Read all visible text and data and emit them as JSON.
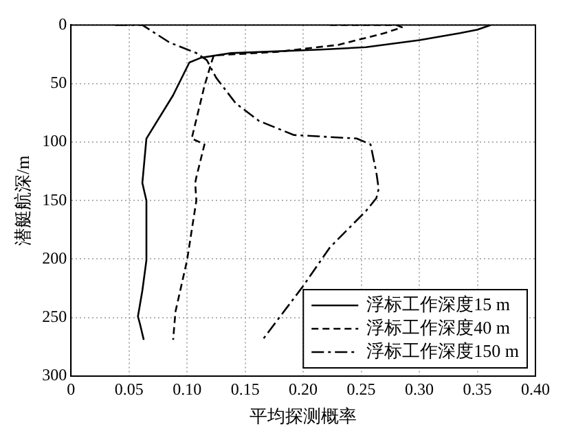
{
  "chart_data": {
    "type": "line",
    "xlabel": "平均探测概率",
    "ylabel": "潜艇航深/m",
    "xlim": [
      0,
      0.4
    ],
    "xticks": [
      0,
      0.05,
      {
        "value": 0.1,
        "label": "0.10"
      },
      0.15,
      {
        "value": 0.2,
        "label": "0.20"
      },
      0.25,
      {
        "value": 0.3,
        "label": "0.30"
      },
      0.35,
      {
        "value": 0.4,
        "label": "0.40"
      }
    ],
    "ylim": [
      300,
      0
    ],
    "yticks": [
      0,
      50,
      100,
      150,
      200,
      250,
      300
    ],
    "grid": true,
    "legend": "bottom right",
    "marker": "none",
    "series": [
      {
        "name": "浮标工作深度15 m",
        "color": "#000000",
        "line_style": "solid",
        "x": [
          0.3615,
          0.35,
          0.335,
          0.3,
          0.254,
          0.215,
          0.138,
          0.112,
          0.102,
          0.088,
          0.065,
          0.0615,
          0.065,
          0.065,
          0.0615,
          0.0577,
          0.0596,
          0.0627
        ],
        "values": [
          0,
          4,
          7,
          13,
          19,
          21,
          24,
          28,
          32,
          60,
          97,
          135,
          150,
          201,
          227,
          249,
          256,
          269
        ]
      },
      {
        "name": "浮标工作深度40 m",
        "color": "#000000",
        "line_style": "dashed",
        "x": [
          0.223,
          0.28,
          0.285,
          0.27,
          0.23,
          0.177,
          0.123,
          0.121,
          0.115,
          0.104,
          0.115,
          0.108,
          0.107,
          0.108,
          0.1,
          0.09,
          0.088
        ],
        "values": [
          0,
          0,
          2,
          7,
          17,
          23,
          26,
          32,
          52,
          97,
          102,
          130,
          135,
          150,
          201,
          245,
          269
        ]
      },
      {
        "name": "浮标工作深度150 m",
        "color": "#000000",
        "line_style": "dashdot",
        "x": [
          0.038,
          0.0615,
          0.085,
          0.108,
          0.117,
          0.125,
          0.142,
          0.162,
          0.192,
          0.246,
          0.258,
          0.263,
          0.265,
          0.263,
          0.254,
          0.223,
          0.2,
          0.165
        ],
        "values": [
          0,
          0,
          15,
          24,
          30,
          45,
          67,
          82,
          94,
          97,
          102,
          126,
          140,
          148,
          159,
          190,
          223,
          269
        ]
      }
    ]
  }
}
